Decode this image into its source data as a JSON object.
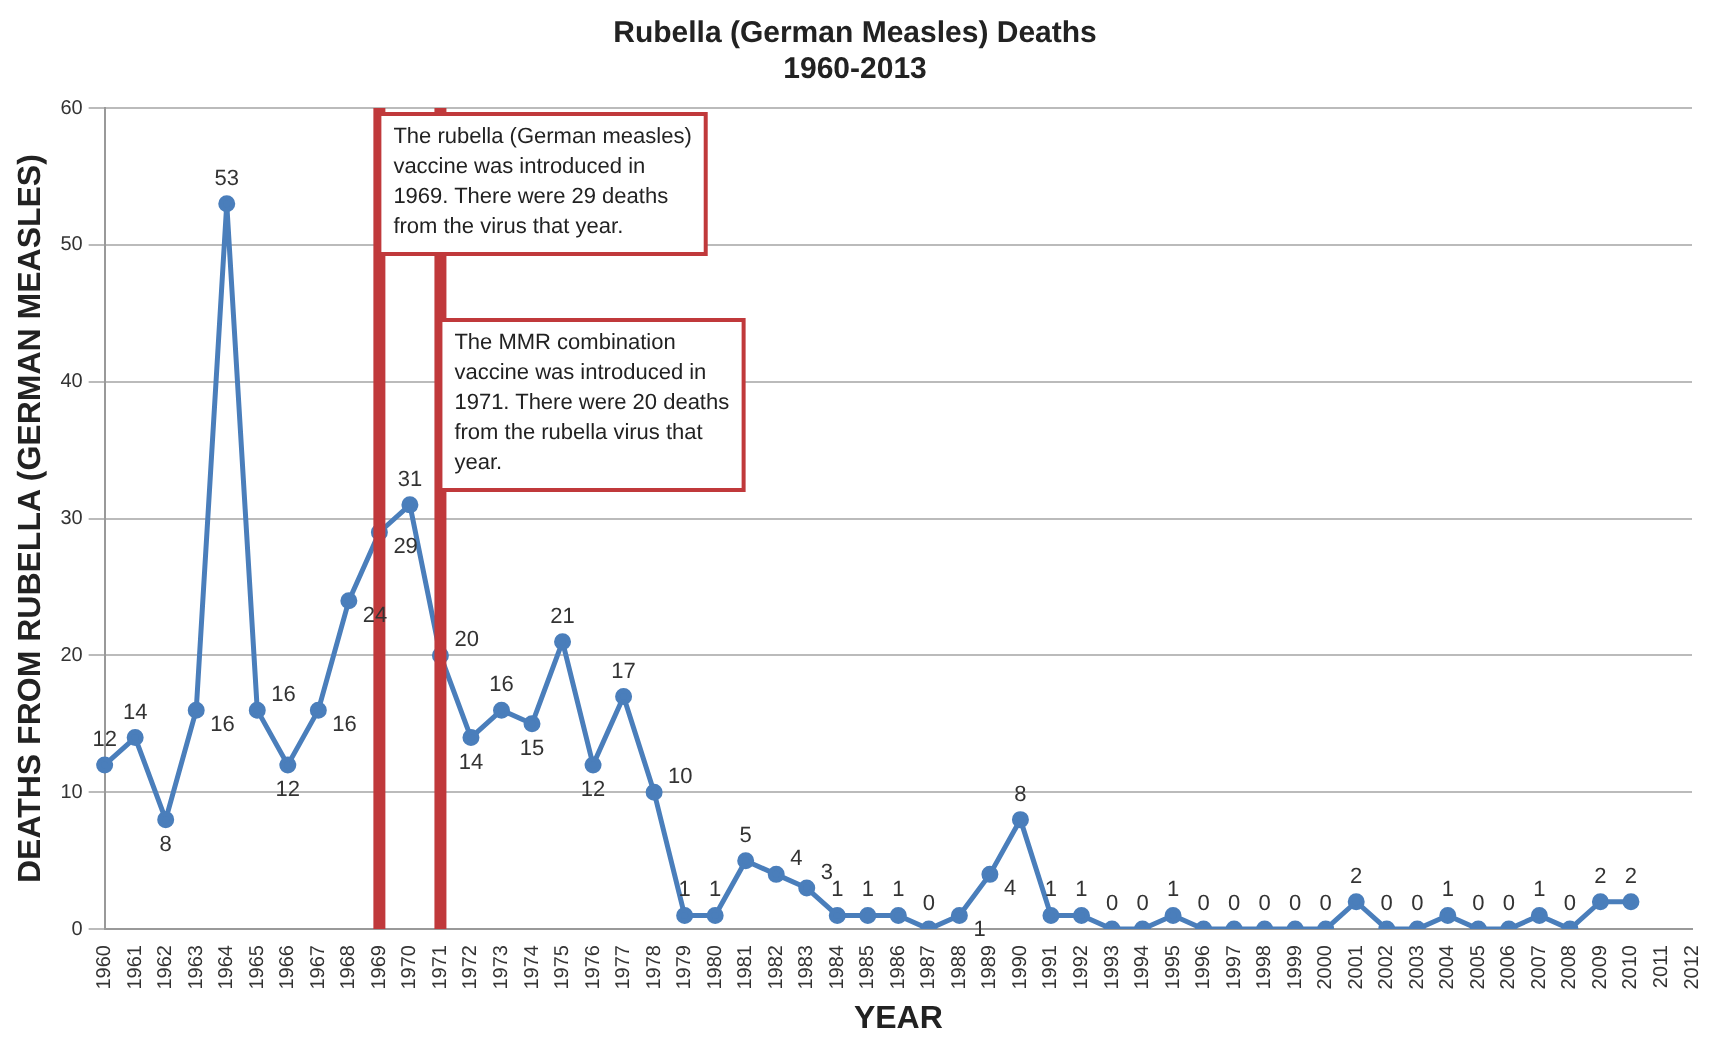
{
  "chart_data": {
    "type": "line",
    "title": "Rubella (German Measles) Deaths",
    "subtitle": "1960-2013",
    "xlabel": "YEAR",
    "ylabel": "DEATHS FROM RUBELLA (GERMAN MEASLES)",
    "categories": [
      "1960",
      "1961",
      "1962",
      "1963",
      "1964",
      "1965",
      "1966",
      "1967",
      "1968",
      "1969",
      "1970",
      "1971",
      "1972",
      "1973",
      "1974",
      "1975",
      "1976",
      "1977",
      "1978",
      "1979",
      "1980",
      "1981",
      "1982",
      "1983",
      "1984",
      "1985",
      "1986",
      "1987",
      "1988",
      "1989",
      "1990",
      "1991",
      "1992",
      "1993",
      "1994",
      "1995",
      "1996",
      "1997",
      "1998",
      "1999",
      "2000",
      "2001",
      "2002",
      "2003",
      "2004",
      "2005",
      "2006",
      "2007",
      "2008",
      "2009",
      "2010",
      "2011",
      "2012"
    ],
    "series": [
      {
        "color": "#4a7ebb",
        "values": [
          12,
          14,
          8,
          16,
          53,
          16,
          12,
          16,
          24,
          29,
          31,
          20,
          14,
          16,
          15,
          21,
          12,
          17,
          10,
          1,
          1,
          5,
          4,
          3,
          1,
          1,
          1,
          0,
          1,
          4,
          8,
          1,
          1,
          0,
          0,
          1,
          0,
          0,
          0,
          0,
          0,
          2,
          0,
          0,
          1,
          0,
          0,
          1,
          0,
          2,
          2,
          null,
          null
        ]
      }
    ],
    "ylim": [
      0,
      60
    ],
    "yticks": [
      0,
      10,
      20,
      30,
      40,
      50,
      60
    ],
    "grid": "y",
    "legend": false,
    "marker": "circle",
    "line_style": "solid",
    "data_labels": true,
    "ref_lines": [
      {
        "axis": "x",
        "value": "1969",
        "label": "The rubella (German measles) vaccine was introduced in 1969. There were 29 deaths from the virus that year.",
        "color": "#c0393b"
      },
      {
        "axis": "x",
        "value": "1971",
        "label": "The MMR combination vaccine was introduced in 1971. There were 20 deaths from the rubella virus that year.",
        "color": "#c0393b"
      }
    ]
  }
}
